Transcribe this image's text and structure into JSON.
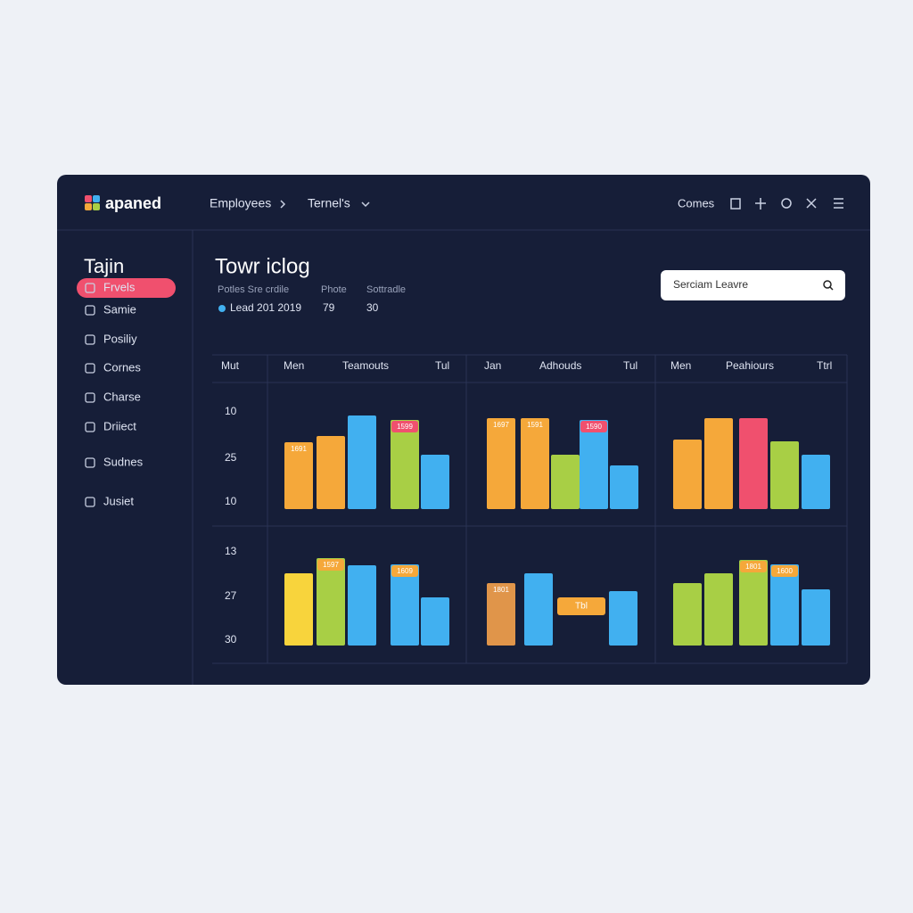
{
  "header": {
    "brand": "apaned",
    "nav": [
      "Employees",
      "Ternel's"
    ],
    "right_link": "Comes"
  },
  "sidebar": {
    "title": "Tajin",
    "items": [
      "Frvels",
      "Samie",
      "Posiliy",
      "Cornes",
      "Charse",
      "Driiect",
      "Sudnes",
      "Jusiet"
    ],
    "active": 0
  },
  "main": {
    "title": "Towr iclog",
    "columns": [
      "Potles Sre crdile",
      "Phote",
      "Sottradle"
    ],
    "row": [
      "Lead 201 2019",
      "79",
      "30"
    ],
    "search_placeholder": "Serciam Leavre"
  },
  "grid": {
    "corner": "Mut",
    "panel_headers": [
      [
        "Men",
        "Teamouts",
        "Tul"
      ],
      [
        "Jan",
        "Adhouds",
        "Tul"
      ],
      [
        "Men",
        "Peahiours",
        "Ttrl"
      ]
    ],
    "row_labels": [
      [
        "10",
        "25",
        "10"
      ],
      [
        "13",
        "27",
        "30"
      ]
    ],
    "panels": [
      [
        {
          "bars": [
            {
              "value": 75,
              "color": "#f5a83a",
              "label": "1691",
              "label_color": "#f5a83a"
            },
            {
              "value": 82,
              "color": "#f5a83a"
            },
            {
              "value": 105,
              "color": "#41b0f0"
            },
            {
              "value": 100,
              "color": "#a8cf45",
              "label": "1599",
              "label_color": "#f0506e"
            },
            {
              "value": 61,
              "color": "#41b0f0"
            }
          ]
        },
        {
          "bars": [
            {
              "value": 102,
              "color": "#f5a83a",
              "label": "1697",
              "label_color": "#f5a83a"
            },
            {
              "value": 102,
              "color": "#f5a83a",
              "label": "1591",
              "label_color": "#f5a83a"
            },
            {
              "value": 61,
              "color": "#a8cf45"
            },
            {
              "value": 100,
              "color": "#41b0f0",
              "label": "1590",
              "label_color": "#f0506e"
            },
            {
              "value": 49,
              "color": "#41b0f0"
            }
          ]
        },
        {
          "bars": [
            {
              "value": 78,
              "color": "#f5a83a"
            },
            {
              "value": 102,
              "color": "#f5a83a"
            },
            {
              "value": 102,
              "color": "#f0506e"
            },
            {
              "value": 76,
              "color": "#a8cf45"
            },
            {
              "value": 61,
              "color": "#41b0f0"
            }
          ]
        }
      ],
      [
        {
          "bars": [
            {
              "value": 81,
              "color": "#f8d43c"
            },
            {
              "value": 98,
              "color": "#a8cf45",
              "label": "1597",
              "label_color": "#f5a83a"
            },
            {
              "value": 90,
              "color": "#41b0f0"
            },
            {
              "value": 91,
              "color": "#41b0f0",
              "label": "1609",
              "label_color": "#f5a83a"
            },
            {
              "value": 54,
              "color": "#41b0f0"
            }
          ]
        },
        {
          "bars": [
            {
              "value": 70,
              "color": "#e0954a",
              "label": "1801",
              "label_color": "#e0954a"
            },
            {
              "value": 81,
              "color": "#41b0f0"
            },
            {
              "value": 61,
              "color": "#41b0f0"
            }
          ],
          "tag": "Tbl"
        },
        {
          "bars": [
            {
              "value": 70,
              "color": "#a8cf45"
            },
            {
              "value": 81,
              "color": "#a8cf45"
            },
            {
              "value": 96,
              "color": "#a8cf45",
              "label": "1801",
              "label_color": "#f5a83a"
            },
            {
              "value": 91,
              "color": "#41b0f0",
              "label": "1600",
              "label_color": "#f5a83a"
            },
            {
              "value": 63,
              "color": "#41b0f0"
            }
          ]
        }
      ]
    ]
  }
}
